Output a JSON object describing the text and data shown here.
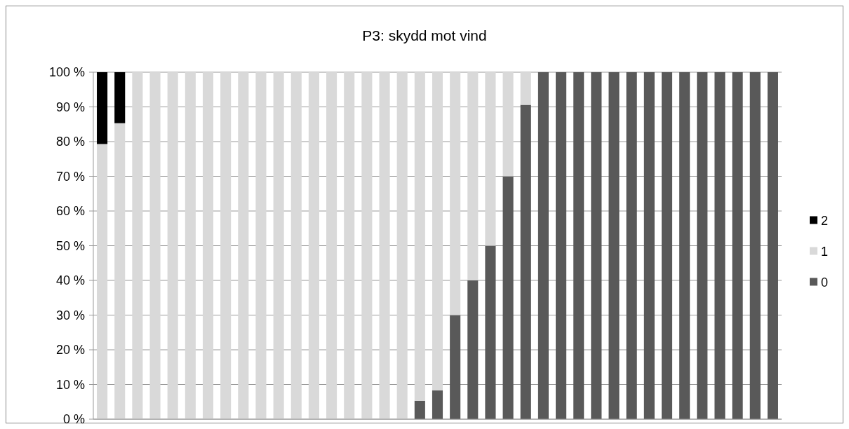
{
  "chart_data": {
    "type": "bar",
    "title": "P3: skydd mot vind",
    "stacked": true,
    "categories": [
      null,
      null,
      null,
      null,
      null,
      null,
      null,
      null,
      null,
      null,
      null,
      null,
      null,
      null,
      null,
      null,
      null,
      null,
      null,
      null,
      null,
      null,
      null,
      null,
      null,
      null,
      null,
      null,
      null,
      null,
      null,
      null,
      null,
      null,
      null,
      null,
      null,
      null,
      null
    ],
    "series": [
      {
        "name": "0",
        "color": "#595959",
        "values": [
          0,
          0,
          0,
          0,
          0,
          0,
          0,
          0,
          0,
          0,
          0,
          0,
          0,
          0,
          0,
          0,
          0,
          0,
          5.3,
          8.3,
          30,
          40,
          50,
          70,
          90.6,
          100,
          100,
          100,
          100,
          100,
          100,
          100,
          100,
          100,
          100,
          100,
          100,
          100,
          100
        ]
      },
      {
        "name": "1",
        "color": "#d9d9d9",
        "values": [
          79.3,
          85.3,
          100,
          100,
          100,
          100,
          100,
          100,
          100,
          100,
          100,
          100,
          100,
          100,
          100,
          100,
          100,
          100,
          94.7,
          91.7,
          70,
          60,
          50,
          30,
          9.4,
          0,
          0,
          0,
          0,
          0,
          0,
          0,
          0,
          0,
          0,
          0,
          0,
          0,
          0
        ]
      },
      {
        "name": "2",
        "color": "#000000",
        "values": [
          20.7,
          14.7,
          0,
          0,
          0,
          0,
          0,
          0,
          0,
          0,
          0,
          0,
          0,
          0,
          0,
          0,
          0,
          0,
          0,
          0,
          0,
          0,
          0,
          0,
          0,
          0,
          0,
          0,
          0,
          0,
          0,
          0,
          0,
          0,
          0,
          0,
          0,
          0,
          0
        ]
      }
    ],
    "ylim": [
      0,
      100
    ],
    "yticks": [
      {
        "value": 0,
        "label": "0 %"
      },
      {
        "value": 10,
        "label": "10 %"
      },
      {
        "value": 20,
        "label": "20 %"
      },
      {
        "value": 30,
        "label": "30 %"
      },
      {
        "value": 40,
        "label": "40 %"
      },
      {
        "value": 50,
        "label": "50 %"
      },
      {
        "value": 60,
        "label": "60 %"
      },
      {
        "value": 70,
        "label": "70 %"
      },
      {
        "value": 80,
        "label": "80 %"
      },
      {
        "value": 90,
        "label": "90 %"
      },
      {
        "value": 100,
        "label": "100 %"
      }
    ],
    "grid": "y",
    "legend": "right"
  }
}
